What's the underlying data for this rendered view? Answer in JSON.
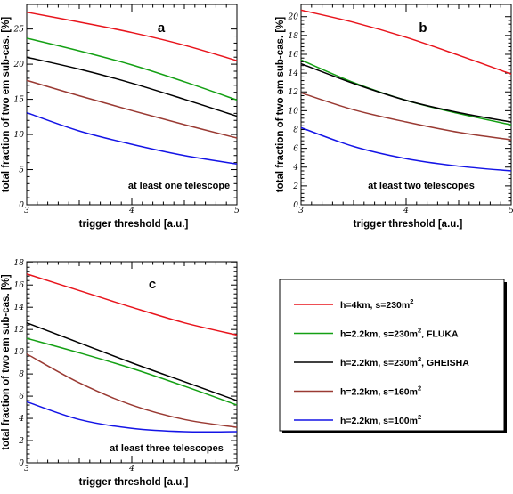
{
  "chart_data": [
    {
      "type": "line",
      "panel": "a",
      "annotation": "at least one telescope",
      "xlabel": "trigger threshold [a.u.]",
      "ylabel": "total fraction of two em sub-cas. [%]",
      "xlim": [
        3,
        5
      ],
      "ylim": [
        0,
        28.5
      ],
      "xticks": [
        3,
        4,
        5
      ],
      "yticks": [
        0,
        5,
        10,
        15,
        20,
        25
      ],
      "series": [
        {
          "legend": 0,
          "x": [
            3,
            3.5,
            4,
            4.5,
            5
          ],
          "values": [
            27.4,
            26.0,
            24.5,
            22.7,
            20.5
          ]
        },
        {
          "legend": 1,
          "x": [
            3,
            3.5,
            4,
            4.5,
            5
          ],
          "values": [
            23.7,
            21.9,
            19.9,
            17.5,
            14.9
          ]
        },
        {
          "legend": 2,
          "x": [
            3,
            3.5,
            4,
            4.5,
            5
          ],
          "values": [
            21.0,
            19.3,
            17.3,
            15.0,
            12.6
          ]
        },
        {
          "legend": 3,
          "x": [
            3,
            3.5,
            4,
            4.5,
            5
          ],
          "values": [
            17.7,
            15.5,
            13.4,
            11.4,
            9.5
          ]
        },
        {
          "legend": 4,
          "x": [
            3,
            3.5,
            4,
            4.5,
            5
          ],
          "values": [
            13.1,
            10.5,
            8.6,
            7.0,
            5.8
          ]
        }
      ]
    },
    {
      "type": "line",
      "panel": "b",
      "annotation": "at least two telescopes",
      "xlabel": "trigger threshold [a.u.]",
      "ylabel": "total fraction of two em sub-cas. [%]",
      "xlim": [
        3,
        5
      ],
      "ylim": [
        0,
        21.3
      ],
      "xticks": [
        3,
        4,
        5
      ],
      "yticks": [
        0,
        2,
        4,
        6,
        8,
        10,
        12,
        14,
        16,
        18,
        20
      ],
      "series": [
        {
          "legend": 0,
          "x": [
            3,
            3.5,
            4,
            4.5,
            5
          ],
          "values": [
            20.7,
            19.4,
            17.8,
            15.9,
            13.9
          ]
        },
        {
          "legend": 1,
          "x": [
            3,
            3.5,
            4,
            4.5,
            5
          ],
          "values": [
            15.4,
            13.0,
            11.1,
            9.7,
            8.5
          ]
        },
        {
          "legend": 2,
          "x": [
            3,
            3.5,
            4,
            4.5,
            5
          ],
          "values": [
            15.0,
            12.9,
            11.1,
            9.8,
            8.8
          ]
        },
        {
          "legend": 3,
          "x": [
            3,
            3.5,
            4,
            4.5,
            5
          ],
          "values": [
            11.9,
            10.1,
            8.8,
            7.7,
            6.9
          ]
        },
        {
          "legend": 4,
          "x": [
            3,
            3.5,
            4,
            4.5,
            5
          ],
          "values": [
            8.2,
            6.2,
            4.9,
            4.1,
            3.6
          ]
        }
      ]
    },
    {
      "type": "line",
      "panel": "c",
      "annotation": "at least three telescopes",
      "xlabel": "trigger threshold [a.u.]",
      "ylabel": "total fraction of two em sub-cas. [%]",
      "xlim": [
        3,
        5
      ],
      "ylim": [
        0,
        18.1
      ],
      "xticks": [
        3,
        4,
        5
      ],
      "yticks": [
        0,
        2,
        4,
        6,
        8,
        10,
        12,
        14,
        16,
        18
      ],
      "series": [
        {
          "legend": 0,
          "x": [
            3,
            3.5,
            4,
            4.5,
            5
          ],
          "values": [
            17.0,
            15.5,
            14.0,
            12.6,
            11.5
          ]
        },
        {
          "legend": 1,
          "x": [
            3,
            3.5,
            4,
            4.5,
            5
          ],
          "values": [
            11.2,
            9.9,
            8.5,
            6.9,
            5.2
          ]
        },
        {
          "legend": 2,
          "x": [
            3,
            3.5,
            4,
            4.5,
            5
          ],
          "values": [
            12.6,
            10.8,
            9.0,
            7.3,
            5.6
          ]
        },
        {
          "legend": 3,
          "x": [
            3,
            3.5,
            4,
            4.5,
            5
          ],
          "values": [
            9.8,
            7.2,
            5.2,
            3.9,
            3.2
          ]
        },
        {
          "legend": 4,
          "x": [
            3,
            3.5,
            4,
            4.5,
            5
          ],
          "values": [
            5.5,
            3.9,
            3.1,
            2.8,
            2.8
          ]
        }
      ]
    }
  ],
  "legend": {
    "placement": "bottom-right",
    "entries": [
      {
        "text": "h=4km, s=230m",
        "sup": "2",
        "suffix": "",
        "color": "#e8141c"
      },
      {
        "text": "h=2.2km, s=230m",
        "sup": "2",
        "suffix": ", FLUKA",
        "color": "#14a014"
      },
      {
        "text": "h=2.2km, s=230m",
        "sup": "2",
        "suffix": ", GHEISHA",
        "color": "#000000"
      },
      {
        "text": "h=2.2km, s=160m",
        "sup": "2",
        "suffix": "",
        "color": "#9a3a33"
      },
      {
        "text": "h=2.2km, s=100m",
        "sup": "2",
        "suffix": "",
        "color": "#1414e6"
      }
    ]
  }
}
